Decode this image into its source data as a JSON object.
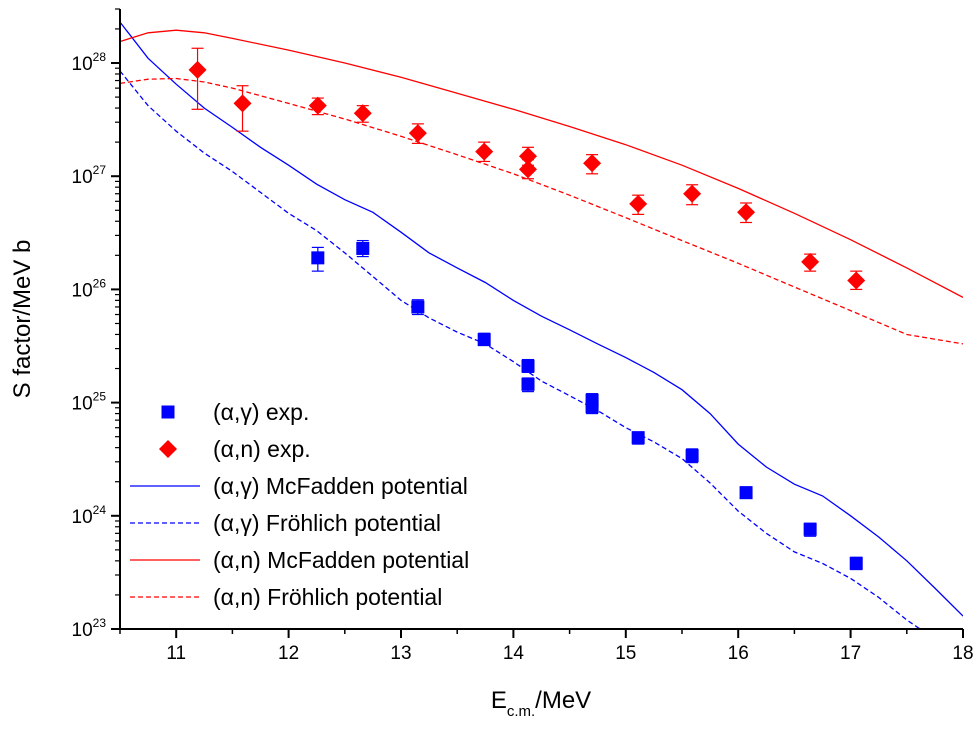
{
  "chart_data": {
    "type": "scatter",
    "xlabel": {
      "main": "E",
      "sub": "c.m.",
      "rest": "/MeV"
    },
    "ylabel": "S factor/MeV b",
    "xlim": [
      10.5,
      18
    ],
    "ylim": [
      1e+23,
      3e+28
    ],
    "yscale": "log",
    "xticks": [
      "11",
      "12",
      "13",
      "14",
      "15",
      "16",
      "17",
      "18"
    ],
    "yticks": [
      {
        "base": "10",
        "exp": "23"
      },
      {
        "base": "10",
        "exp": "24"
      },
      {
        "base": "10",
        "exp": "25"
      },
      {
        "base": "10",
        "exp": "26"
      },
      {
        "base": "10",
        "exp": "27"
      },
      {
        "base": "10",
        "exp": "28"
      }
    ],
    "legend_position": "bottom-left",
    "series": [
      {
        "name": "(α,γ) exp.",
        "kind": "points",
        "marker": "square",
        "color": "#0000ff",
        "x": [
          12.26,
          12.66,
          13.15,
          13.74,
          14.13,
          14.13,
          14.7,
          14.7,
          15.11,
          15.59,
          16.07,
          16.64,
          17.05
        ],
        "y": [
          1.9e+26,
          2.3e+26,
          7e+25,
          3.6e+25,
          2.1e+25,
          1.45e+25,
          1.05e+25,
          9.2e+24,
          4.9e+24,
          3.4e+24,
          1.6e+24,
          7.6e+23,
          3.8e+23
        ],
        "err_low": [
          1.45e+26,
          1.95e+26,
          6e+25,
          3.2e+25,
          1.85e+25,
          1.25e+25,
          9e+24,
          8e+24,
          4.3e+24,
          2.95e+24,
          1.45e+24,
          6.6e+23,
          3.35e+23
        ],
        "err_high": [
          2.35e+26,
          2.7e+26,
          8.1e+25,
          4.1e+25,
          2.4e+25,
          1.65e+25,
          1.2e+25,
          1.05e+25,
          5.5e+24,
          3.9e+24,
          1.8e+24,
          8.6e+23,
          4.3e+23
        ]
      },
      {
        "name": "(α,n) exp.",
        "kind": "points",
        "marker": "diamond",
        "color": "#ff0000",
        "x": [
          11.19,
          11.59,
          12.26,
          12.66,
          13.15,
          13.74,
          14.13,
          14.13,
          14.7,
          15.11,
          15.59,
          16.07,
          16.64,
          17.05
        ],
        "y": [
          8.7e+27,
          4.4e+27,
          4.2e+27,
          3.6e+27,
          2.4e+27,
          1.65e+27,
          1.5e+27,
          1.15e+27,
          1.3e+27,
          5.7e+26,
          7e+26,
          4.8e+26,
          1.75e+26,
          1.2e+26
        ],
        "err_low": [
          3.9e+27,
          2.5e+27,
          3.5e+27,
          3e+27,
          1.95e+27,
          1.35e+27,
          1.25e+27,
          9.5e+26,
          1.05e+27,
          4.6e+26,
          5.6e+26,
          3.9e+26,
          1.45e+26,
          1e+26
        ],
        "err_high": [
          1.35e+28,
          6.3e+27,
          4.9e+27,
          4.2e+27,
          2.9e+27,
          2e+27,
          1.8e+27,
          1.4e+27,
          1.55e+27,
          6.8e+26,
          8.4e+26,
          5.8e+26,
          2.05e+26,
          1.45e+26
        ]
      },
      {
        "name": "(α,γ) McFadden potential",
        "kind": "line",
        "dash": "solid",
        "color": "#0000ff",
        "x": [
          10.5,
          10.75,
          11.0,
          11.25,
          11.5,
          11.75,
          12.0,
          12.25,
          12.5,
          12.75,
          13.0,
          13.25,
          13.5,
          13.75,
          14.0,
          14.25,
          14.5,
          14.75,
          15.0,
          15.25,
          15.5,
          15.75,
          16.0,
          16.25,
          16.5,
          16.75,
          17.0,
          17.25,
          17.5,
          17.75,
          18.0
        ],
        "y": [
          2.3e+28,
          1.1e+28,
          6.5e+27,
          4e+27,
          2.7e+27,
          1.8e+27,
          1.25e+27,
          8.5e+26,
          6.2e+26,
          4.8e+26,
          3.2e+26,
          2.1e+26,
          1.55e+26,
          1.15e+26,
          8e+25,
          5.8e+25,
          4.4e+25,
          3.3e+25,
          2.5e+25,
          1.85e+25,
          1.3e+25,
          8e+24,
          4.3e+24,
          2.7e+24,
          1.9e+24,
          1.5e+24,
          1e+24,
          6.5e+23,
          4e+23,
          2.3e+23,
          1.3e+23
        ]
      },
      {
        "name": "(α,γ) Fröhlich potential",
        "kind": "line",
        "dash": "dashed",
        "color": "#0000ff",
        "x": [
          10.5,
          10.75,
          11.0,
          11.25,
          11.5,
          11.75,
          12.0,
          12.25,
          12.5,
          12.75,
          13.0,
          13.25,
          13.5,
          13.75,
          14.0,
          14.25,
          14.5,
          14.75,
          15.0,
          15.25,
          15.5,
          15.75,
          16.0,
          16.25,
          16.5,
          16.75,
          17.0,
          17.25,
          17.5,
          17.65
        ],
        "y": [
          8.5e+27,
          4.2e+27,
          2.5e+27,
          1.6e+27,
          1.1e+27,
          7.2e+26,
          4.7e+26,
          3.3e+26,
          2.1e+26,
          1.3e+26,
          8e+25,
          5.6e+25,
          4.2e+25,
          3.3e+25,
          2.3e+25,
          1.55e+25,
          1.15e+25,
          8.5e+24,
          6e+24,
          4.5e+24,
          3.2e+24,
          1.95e+24,
          1.1e+24,
          7e+23,
          4.8e+23,
          3.8e+23,
          2.8e+23,
          1.9e+23,
          1.2e+23,
          9.5e+22
        ]
      },
      {
        "name": "(α,n) McFadden potential",
        "kind": "line",
        "dash": "solid",
        "color": "#ff0000",
        "x": [
          10.5,
          10.75,
          11.0,
          11.25,
          11.5,
          12.0,
          12.5,
          13.0,
          13.5,
          14.0,
          14.5,
          15.0,
          15.5,
          16.0,
          16.5,
          17.0,
          17.5,
          18.0
        ],
        "y": [
          1.55e+28,
          1.85e+28,
          1.95e+28,
          1.85e+28,
          1.65e+28,
          1.3e+28,
          1e+28,
          7.5e+27,
          5.4e+27,
          3.9e+27,
          2.75e+27,
          1.9e+27,
          1.25e+27,
          7.8e+26,
          4.7e+26,
          2.75e+26,
          1.55e+26,
          8.5e+25
        ]
      },
      {
        "name": "(α,n) Fröhlich potential",
        "kind": "line",
        "dash": "dashed",
        "color": "#ff0000",
        "x": [
          10.5,
          10.75,
          11.0,
          11.25,
          11.5,
          12.0,
          12.5,
          13.0,
          13.5,
          14.0,
          14.5,
          15.0,
          15.5,
          16.0,
          16.5,
          17.0,
          17.5,
          18.0
        ],
        "y": [
          6.6e+27,
          7.2e+27,
          7.3e+27,
          6.8e+27,
          6e+27,
          4.4e+27,
          3.2e+27,
          2.25e+27,
          1.55e+27,
          1.05e+27,
          6.8e+26,
          4.3e+26,
          2.7e+26,
          1.7e+26,
          1.05e+26,
          6.5e+25,
          4e+25,
          3.3e+25
        ]
      }
    ]
  }
}
